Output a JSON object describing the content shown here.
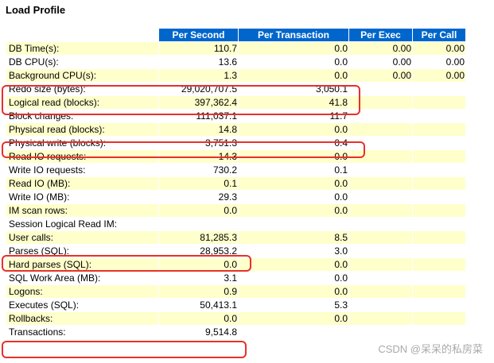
{
  "title": "Load Profile",
  "columns": [
    "Per Second",
    "Per Transaction",
    "Per Exec",
    "Per Call"
  ],
  "rows": [
    {
      "label": "DB Time(s):",
      "per_second": "110.7",
      "per_transaction": "0.0",
      "per_exec": "0.00",
      "per_call": "0.00"
    },
    {
      "label": "DB CPU(s):",
      "per_second": "13.6",
      "per_transaction": "0.0",
      "per_exec": "0.00",
      "per_call": "0.00"
    },
    {
      "label": "Background CPU(s):",
      "per_second": "1.3",
      "per_transaction": "0.0",
      "per_exec": "0.00",
      "per_call": "0.00"
    },
    {
      "label": "Redo size (bytes):",
      "per_second": "29,020,707.5",
      "per_transaction": "3,050.1",
      "per_exec": "",
      "per_call": ""
    },
    {
      "label": "Logical read (blocks):",
      "per_second": "397,362.4",
      "per_transaction": "41.8",
      "per_exec": "",
      "per_call": ""
    },
    {
      "label": "Block changes:",
      "per_second": "111,037.1",
      "per_transaction": "11.7",
      "per_exec": "",
      "per_call": ""
    },
    {
      "label": "Physical read (blocks):",
      "per_second": "14.8",
      "per_transaction": "0.0",
      "per_exec": "",
      "per_call": ""
    },
    {
      "label": "Physical write (blocks):",
      "per_second": "3,751.3",
      "per_transaction": "0.4",
      "per_exec": "",
      "per_call": ""
    },
    {
      "label": "Read IO requests:",
      "per_second": "14.3",
      "per_transaction": "0.0",
      "per_exec": "",
      "per_call": ""
    },
    {
      "label": "Write IO requests:",
      "per_second": "730.2",
      "per_transaction": "0.1",
      "per_exec": "",
      "per_call": ""
    },
    {
      "label": "Read IO (MB):",
      "per_second": "0.1",
      "per_transaction": "0.0",
      "per_exec": "",
      "per_call": ""
    },
    {
      "label": "Write IO (MB):",
      "per_second": "29.3",
      "per_transaction": "0.0",
      "per_exec": "",
      "per_call": ""
    },
    {
      "label": "IM scan rows:",
      "per_second": "0.0",
      "per_transaction": "0.0",
      "per_exec": "",
      "per_call": ""
    },
    {
      "label": "Session Logical Read IM:",
      "per_second": "",
      "per_transaction": "",
      "per_exec": "",
      "per_call": ""
    },
    {
      "label": "User calls:",
      "per_second": "81,285.3",
      "per_transaction": "8.5",
      "per_exec": "",
      "per_call": ""
    },
    {
      "label": "Parses (SQL):",
      "per_second": "28,953.2",
      "per_transaction": "3.0",
      "per_exec": "",
      "per_call": ""
    },
    {
      "label": "Hard parses (SQL):",
      "per_second": "0.0",
      "per_transaction": "0.0",
      "per_exec": "",
      "per_call": ""
    },
    {
      "label": "SQL Work Area (MB):",
      "per_second": "3.1",
      "per_transaction": "0.0",
      "per_exec": "",
      "per_call": ""
    },
    {
      "label": "Logons:",
      "per_second": "0.9",
      "per_transaction": "0.0",
      "per_exec": "",
      "per_call": ""
    },
    {
      "label": "Executes (SQL):",
      "per_second": "50,413.1",
      "per_transaction": "5.3",
      "per_exec": "",
      "per_call": ""
    },
    {
      "label": "Rollbacks:",
      "per_second": "0.0",
      "per_transaction": "0.0",
      "per_exec": "",
      "per_call": ""
    },
    {
      "label": "Transactions:",
      "per_second": "9,514.8",
      "per_transaction": "",
      "per_exec": "",
      "per_call": ""
    }
  ],
  "watermark": "CSDN @呆呆的私房菜",
  "highlight_color": "#e8302a",
  "header_color": "#0066cc",
  "odd_row_color": "#ffffcc"
}
